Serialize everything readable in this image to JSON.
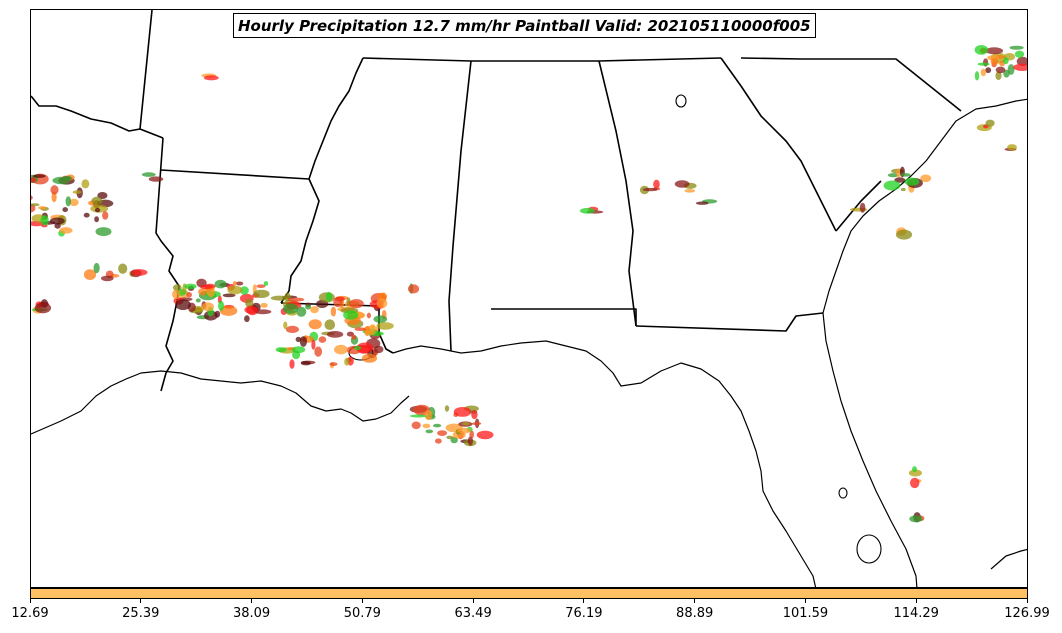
{
  "title": "Hourly Precipitation 12.7 mm/hr Paintball Valid: 202105110000f005",
  "colorbar": {
    "color": "#ffc064",
    "ticks": [
      "12.69",
      "25.39",
      "38.09",
      "50.79",
      "63.49",
      "76.19",
      "88.89",
      "101.59",
      "114.29",
      "126.99"
    ]
  },
  "paintball_colors": [
    "#ff1a1a",
    "#e8421e",
    "#ff7a12",
    "#8b1a1a",
    "#5a0e0e",
    "#1fd11f",
    "#2e9b2e",
    "#8a8a12",
    "#b0a010",
    "#ff9a28"
  ]
}
